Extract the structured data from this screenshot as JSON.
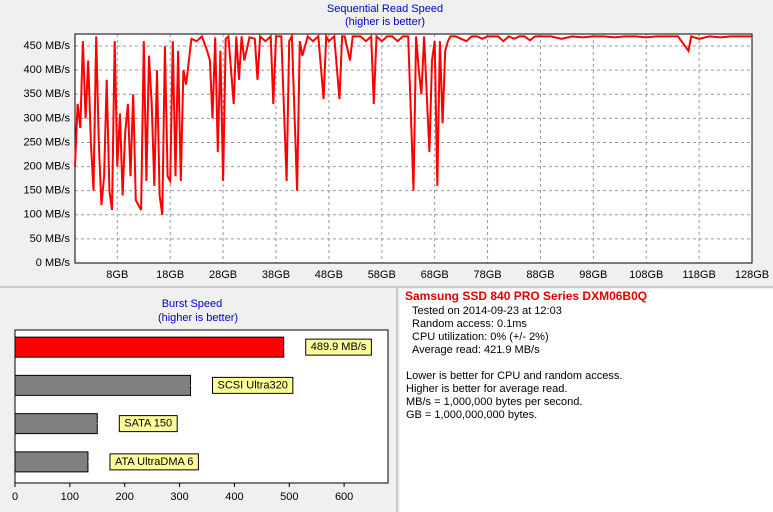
{
  "chart_data": [
    {
      "type": "line",
      "title": "Sequential Read Speed",
      "subtitle": "(higher is better)",
      "color": "#ff0000",
      "x": [
        0,
        0.5,
        1,
        1.5,
        2,
        2.5,
        3,
        3.5,
        4,
        4.5,
        5,
        5.5,
        6,
        6.5,
        7,
        7.5,
        8,
        8.5,
        9,
        9.5,
        10,
        10.5,
        11,
        11.5,
        12,
        12.5,
        13,
        13.5,
        14,
        14.5,
        15,
        15.5,
        16,
        16.5,
        17,
        17.5,
        18,
        18.5,
        19,
        19.5,
        20,
        20.5,
        21,
        22,
        23,
        24,
        25,
        25.5,
        26,
        26.5,
        27,
        27.5,
        28,
        28.5,
        29,
        30,
        30.5,
        31,
        31.5,
        32,
        33,
        34,
        34.5,
        35,
        36,
        37,
        37.5,
        38,
        39,
        40,
        40.5,
        41,
        42,
        42.5,
        43,
        44,
        45,
        46,
        47,
        47.5,
        48,
        49,
        50,
        50.5,
        51,
        52,
        52.5,
        54,
        55,
        56,
        56.5,
        57,
        58,
        59,
        60,
        61,
        62,
        63,
        64,
        64.5,
        65,
        65.5,
        66,
        67,
        67.5,
        68,
        68.5,
        69,
        69.5,
        70,
        70.5,
        71,
        72,
        73,
        74,
        75,
        76,
        77,
        78,
        80,
        81,
        82,
        83,
        84,
        85,
        86,
        87,
        88,
        90,
        92,
        94,
        96,
        98,
        100,
        102,
        104,
        106,
        108,
        110,
        112,
        114,
        116,
        116.5,
        118,
        120,
        122,
        124,
        126,
        128
      ],
      "values": [
        200,
        330,
        280,
        460,
        300,
        420,
        250,
        150,
        470,
        250,
        120,
        180,
        380,
        150,
        110,
        460,
        200,
        310,
        140,
        270,
        330,
        180,
        350,
        130,
        120,
        110,
        460,
        170,
        430,
        330,
        160,
        400,
        140,
        100,
        450,
        180,
        170,
        460,
        180,
        440,
        170,
        400,
        370,
        465,
        460,
        470,
        440,
        420,
        300,
        468,
        230,
        440,
        170,
        465,
        470,
        330,
        470,
        380,
        470,
        420,
        468,
        465,
        380,
        470,
        460,
        470,
        330,
        470,
        470,
        170,
        460,
        470,
        150,
        460,
        430,
        470,
        460,
        470,
        340,
        470,
        460,
        470,
        340,
        470,
        470,
        420,
        470,
        470,
        460,
        470,
        330,
        470,
        460,
        470,
        470,
        460,
        470,
        470,
        150,
        470,
        400,
        350,
        470,
        230,
        420,
        460,
        160,
        460,
        290,
        440,
        460,
        470,
        470,
        465,
        460,
        470,
        470,
        465,
        470,
        470,
        460,
        470,
        465,
        470,
        470,
        462,
        470,
        470,
        470,
        465,
        470,
        468,
        470,
        470,
        468,
        470,
        470,
        468,
        470,
        470,
        470,
        440,
        470,
        465,
        470,
        468,
        470,
        470,
        470
      ],
      "xlim": [
        0,
        128
      ],
      "ylim": [
        0,
        475
      ],
      "xticks": [
        {
          "value": 8,
          "label": "8GB"
        },
        {
          "value": 18,
          "label": "18GB"
        },
        {
          "value": 28,
          "label": "28GB"
        },
        {
          "value": 38,
          "label": "38GB"
        },
        {
          "value": 48,
          "label": "48GB"
        },
        {
          "value": 58,
          "label": "58GB"
        },
        {
          "value": 68,
          "label": "68GB"
        },
        {
          "value": 78,
          "label": "78GB"
        },
        {
          "value": 88,
          "label": "88GB"
        },
        {
          "value": 98,
          "label": "98GB"
        },
        {
          "value": 108,
          "label": "108GB"
        },
        {
          "value": 118,
          "label": "118GB"
        },
        {
          "value": 128,
          "label": "128GB"
        }
      ],
      "yticks": [
        {
          "value": 0,
          "label": "0 MB/s"
        },
        {
          "value": 50,
          "label": "50 MB/s"
        },
        {
          "value": 100,
          "label": "100 MB/s"
        },
        {
          "value": 150,
          "label": "150 MB/s"
        },
        {
          "value": 200,
          "label": "200 MB/s"
        },
        {
          "value": 250,
          "label": "250 MB/s"
        },
        {
          "value": 300,
          "label": "300 MB/s"
        },
        {
          "value": 350,
          "label": "350 MB/s"
        },
        {
          "value": 400,
          "label": "400 MB/s"
        },
        {
          "value": 450,
          "label": "450 MB/s"
        }
      ],
      "grid": true
    },
    {
      "type": "bar",
      "orientation": "horizontal",
      "title": "Burst Speed",
      "subtitle": "(higher is better)",
      "categories": [
        null,
        "SCSI Ultra320",
        "SATA 150",
        "ATA UltraDMA 6"
      ],
      "values": [
        489.9,
        320,
        150,
        133
      ],
      "value_labels": [
        "489.9 MB/s",
        null,
        null,
        null
      ],
      "colors": [
        "#ff0000",
        "#808080",
        "#808080",
        "#808080"
      ],
      "xlim": [
        0,
        680
      ],
      "xticks": [
        0,
        100,
        200,
        300,
        400,
        500,
        600
      ]
    }
  ],
  "info": {
    "title": "Samsung SSD 840 PRO Series DXM06B0Q",
    "lines": [
      "Tested on 2014-09-23 at 12:03",
      "Random access: 0.1ms",
      "CPU utilization: 0% (+/- 2%)",
      "Average read: 421.9 MB/s"
    ],
    "notes": [
      "Lower is better for CPU and random access.",
      "Higher is better for average read.",
      "MB/s = 1,000,000 bytes per second.",
      "GB = 1,000,000,000 bytes."
    ]
  }
}
